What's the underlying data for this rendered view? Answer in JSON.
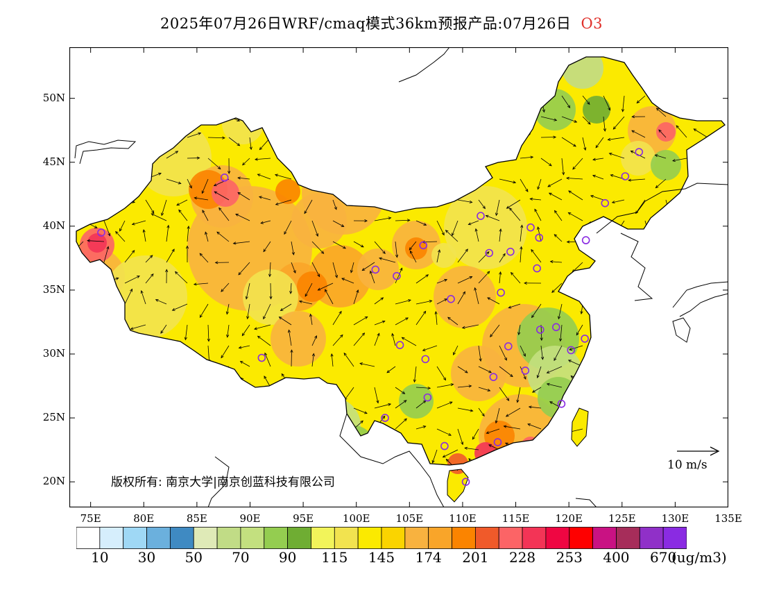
{
  "title": {
    "text": "2025年07月26日WRF/cmaq模式36km预报产品:07月26日",
    "species": "O3",
    "species_color": "#e0302a"
  },
  "axes": {
    "lat_labels": [
      "50N",
      "45N",
      "40N",
      "35N",
      "30N",
      "25N",
      "20N"
    ],
    "lat_values": [
      50,
      45,
      40,
      35,
      30,
      25,
      20
    ],
    "lon_labels": [
      "75E",
      "80E",
      "85E",
      "90E",
      "95E",
      "100E",
      "105E",
      "110E",
      "115E",
      "120E",
      "125E",
      "130E",
      "135E"
    ],
    "lon_values": [
      75,
      80,
      85,
      90,
      95,
      100,
      105,
      110,
      115,
      120,
      125,
      130,
      135
    ],
    "lon_range": [
      73,
      135
    ],
    "lat_range": [
      18,
      54
    ]
  },
  "colorbar": {
    "colors": [
      "#ffffff",
      "#d6eefc",
      "#9fd8f5",
      "#6bb0dd",
      "#3f8ac2",
      "#dfeab7",
      "#c1dc86",
      "#c3e07f",
      "#94cd50",
      "#6fad33",
      "#f2f45a",
      "#f2e34f",
      "#fbea00",
      "#fad400",
      "#f8b23f",
      "#f9a529",
      "#fb8400",
      "#f05a2a",
      "#fc6466",
      "#f33456",
      "#ef0642",
      "#fe0000",
      "#c91283",
      "#a62d5a",
      "#9030c8",
      "#8a2be2"
    ],
    "tick_labels": [
      "10",
      "30",
      "50",
      "70",
      "90",
      "115",
      "145",
      "174",
      "201",
      "228",
      "253",
      "400",
      "670"
    ],
    "unit": "(ug/m3)"
  },
  "annotations": {
    "copyright": "版权所有: 南京大学|南京创蓝科技有限公司",
    "wind_reference": "10 m/s"
  },
  "sites": [
    {
      "lon": 87.6,
      "lat": 43.8
    },
    {
      "lon": 76.0,
      "lat": 39.5
    },
    {
      "lon": 91.1,
      "lat": 29.7
    },
    {
      "lon": 101.8,
      "lat": 36.6
    },
    {
      "lon": 103.8,
      "lat": 36.1
    },
    {
      "lon": 106.3,
      "lat": 38.5
    },
    {
      "lon": 111.7,
      "lat": 40.8
    },
    {
      "lon": 112.5,
      "lat": 37.9
    },
    {
      "lon": 114.5,
      "lat": 38.0
    },
    {
      "lon": 116.4,
      "lat": 39.9
    },
    {
      "lon": 117.2,
      "lat": 39.1
    },
    {
      "lon": 117.0,
      "lat": 36.7
    },
    {
      "lon": 113.6,
      "lat": 34.8
    },
    {
      "lon": 108.9,
      "lat": 34.3
    },
    {
      "lon": 104.1,
      "lat": 30.7
    },
    {
      "lon": 106.5,
      "lat": 29.6
    },
    {
      "lon": 106.7,
      "lat": 26.6
    },
    {
      "lon": 102.7,
      "lat": 25.0
    },
    {
      "lon": 108.3,
      "lat": 22.8
    },
    {
      "lon": 113.3,
      "lat": 23.1
    },
    {
      "lon": 110.3,
      "lat": 20.0
    },
    {
      "lon": 112.9,
      "lat": 28.2
    },
    {
      "lon": 114.3,
      "lat": 30.6
    },
    {
      "lon": 115.9,
      "lat": 28.7
    },
    {
      "lon": 117.3,
      "lat": 31.9
    },
    {
      "lon": 118.8,
      "lat": 32.1
    },
    {
      "lon": 120.2,
      "lat": 30.3
    },
    {
      "lon": 121.5,
      "lat": 31.2
    },
    {
      "lon": 119.3,
      "lat": 26.1
    },
    {
      "lon": 123.4,
      "lat": 41.8
    },
    {
      "lon": 125.3,
      "lat": 43.9
    },
    {
      "lon": 126.6,
      "lat": 45.8
    },
    {
      "lon": 121.6,
      "lat": 38.9
    }
  ]
}
